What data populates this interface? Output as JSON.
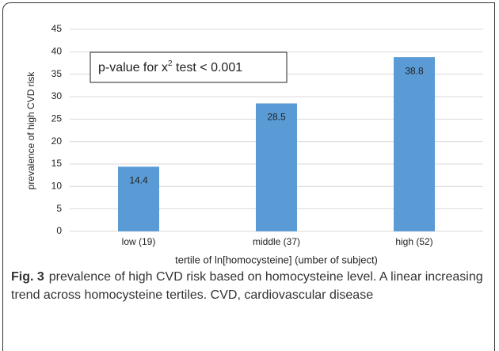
{
  "chart_data": {
    "type": "bar",
    "categories": [
      "low (19)",
      "middle (37)",
      "high (52)"
    ],
    "values": [
      14.4,
      28.5,
      38.8
    ],
    "color": "#5b9bd5",
    "ylim": [
      0,
      45
    ],
    "yticks": [
      0,
      5,
      10,
      15,
      20,
      25,
      30,
      35,
      40,
      45
    ],
    "grid": true,
    "y_label": "prevalence of high CVD risk",
    "x_label": "tertile of ln[homocysteine] (umber of subject)",
    "annotation": {
      "text": "p-value for x",
      "superscript": "2",
      "after": " test < 0.001"
    }
  },
  "caption": {
    "label": "Fig. 3",
    "text": "prevalence of high CVD risk based on homocysteine level. A linear increasing trend across homocysteine tertiles. CVD, cardiovascular disease"
  }
}
